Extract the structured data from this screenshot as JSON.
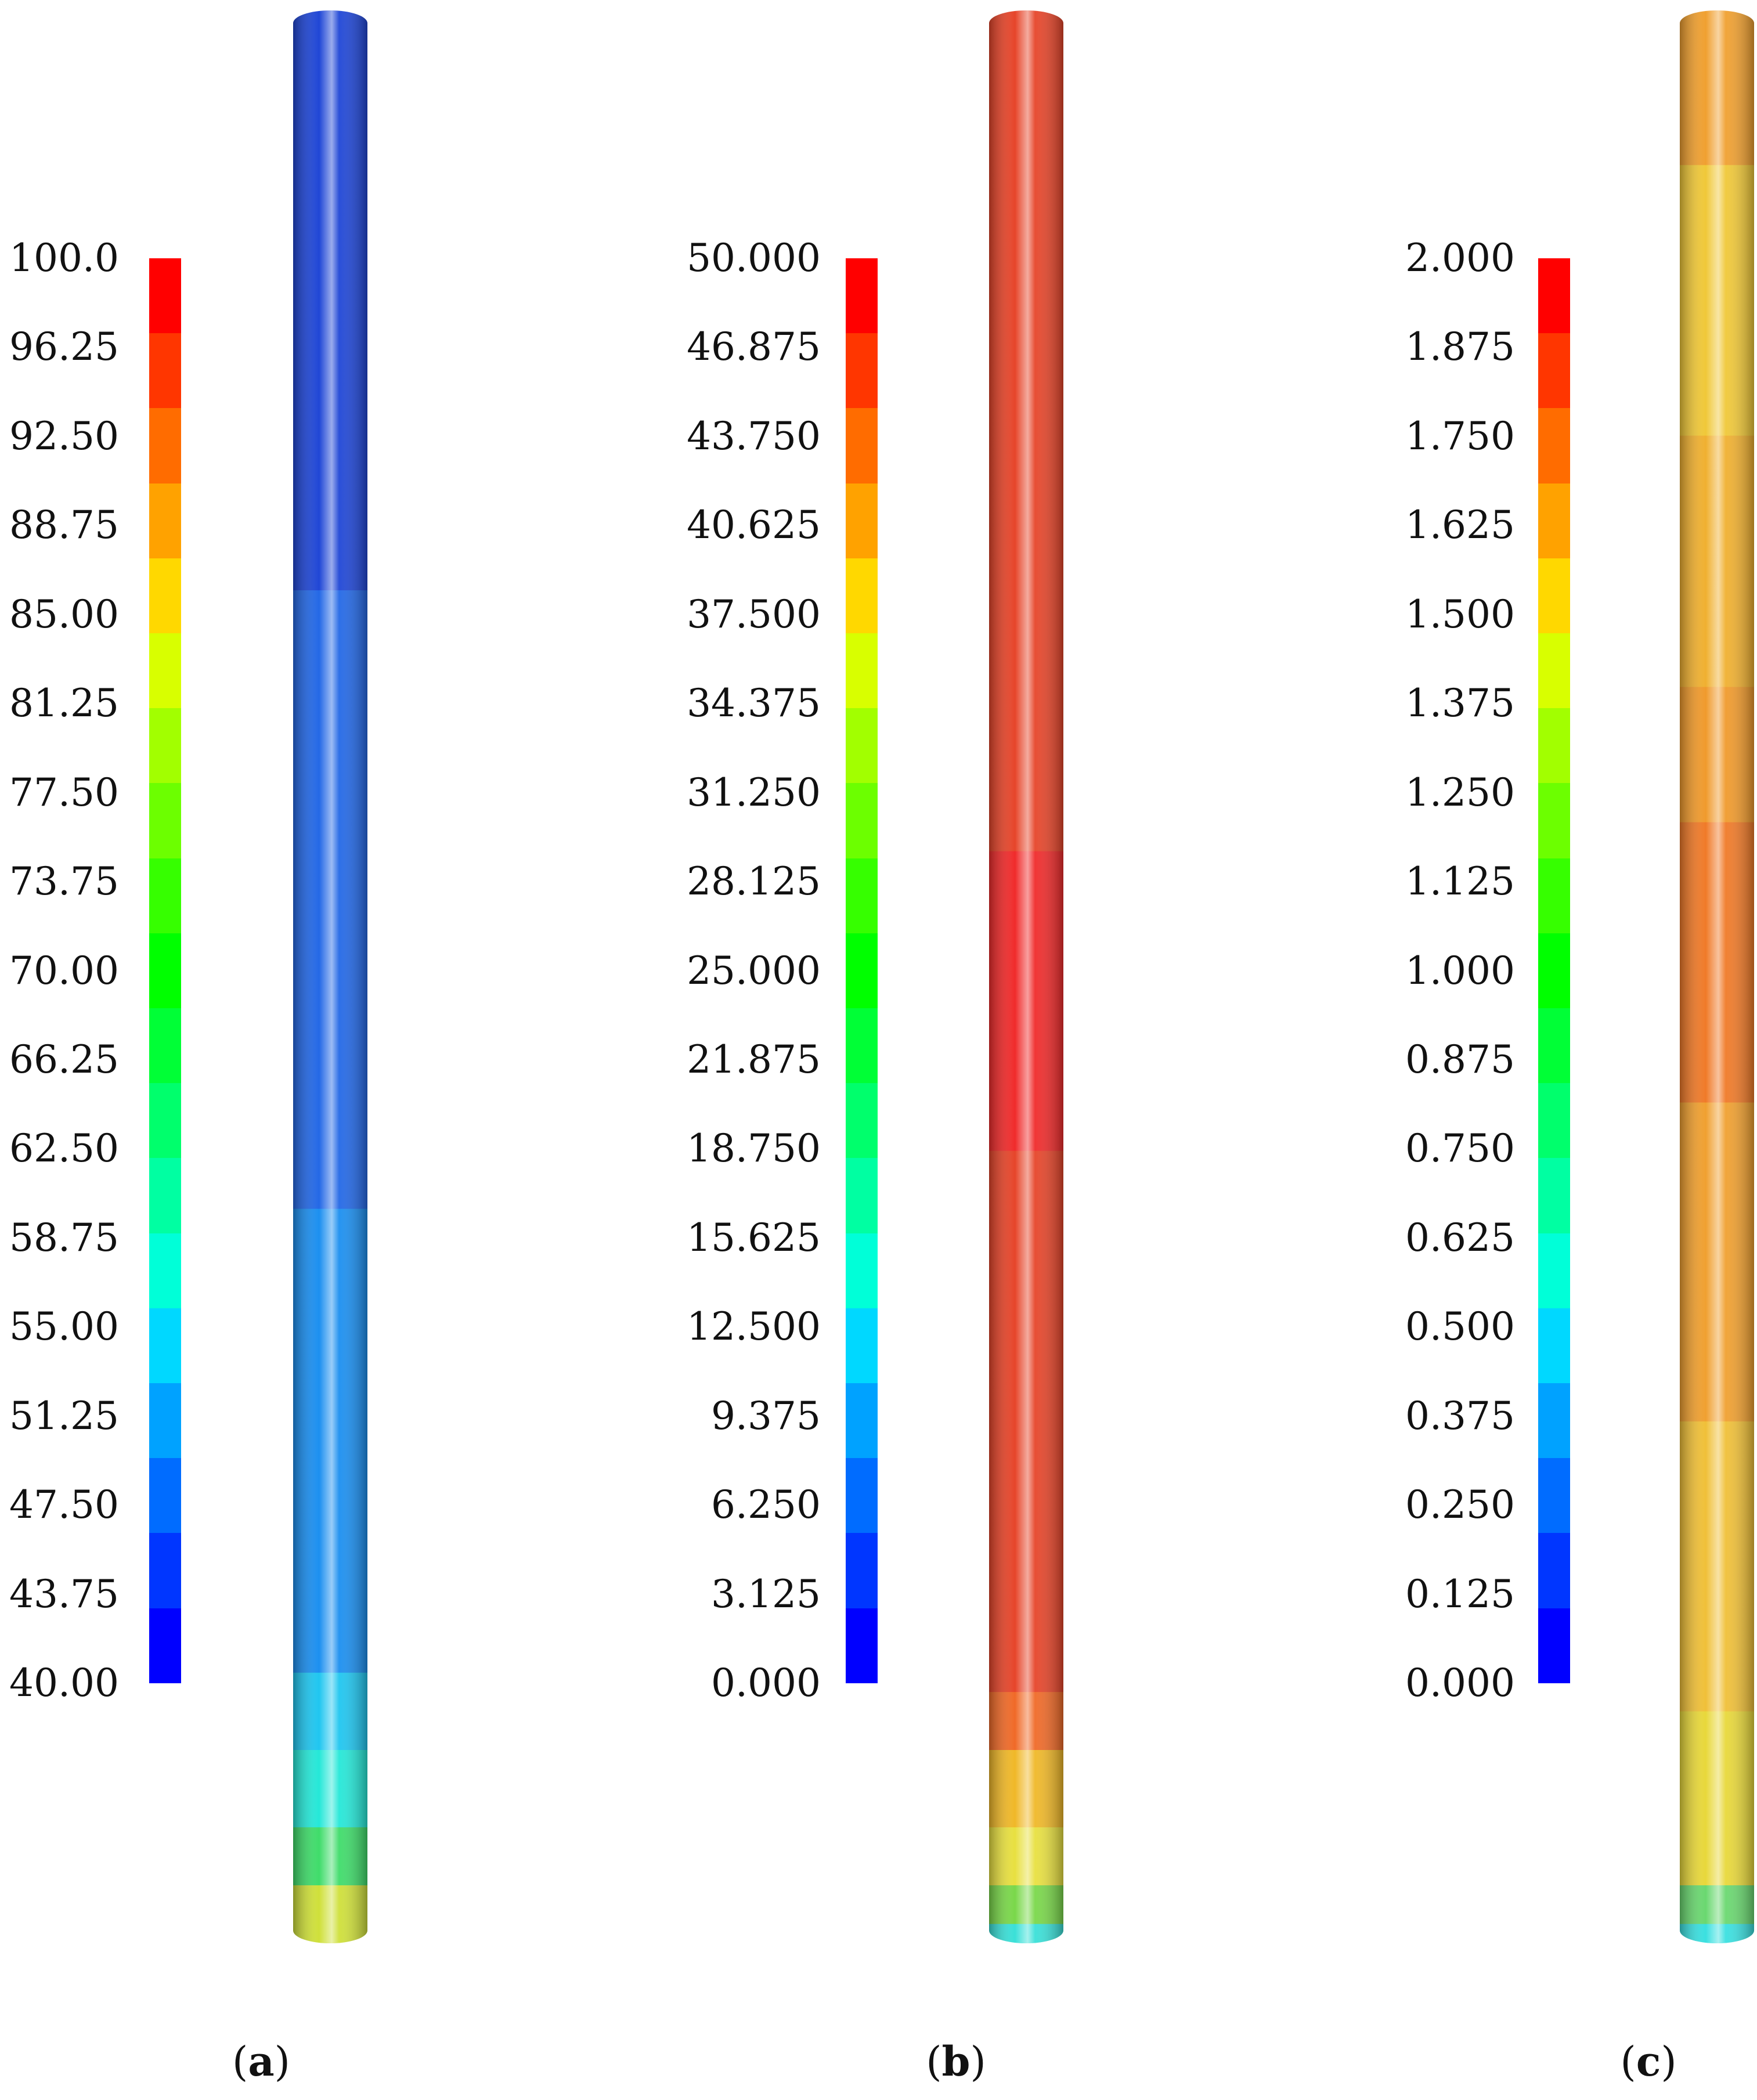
{
  "colormap": [
    "#0000ff",
    "#0036ff",
    "#006cff",
    "#00a2ff",
    "#00d8ff",
    "#00ffd8",
    "#00ffa2",
    "#00ff6c",
    "#00ff36",
    "#00ff00",
    "#36ff00",
    "#6cff00",
    "#a2ff00",
    "#d8ff00",
    "#ffd800",
    "#ffa200",
    "#ff6c00",
    "#ff3600",
    "#ff0000"
  ],
  "panels": [
    {
      "id": "a",
      "caption_open": "(",
      "caption_letter": "a",
      "caption_close": ")",
      "legend_ticks": [
        "100.0",
        "96.25",
        "92.50",
        "88.75",
        "85.00",
        "81.25",
        "77.50",
        "73.75",
        "70.00",
        "66.25",
        "62.50",
        "58.75",
        "55.00",
        "51.25",
        "47.50",
        "43.75",
        "40.00"
      ],
      "rod_bands": [
        {
          "from": 0.0,
          "to": 0.3,
          "color": "#1f46d6"
        },
        {
          "from": 0.3,
          "to": 0.62,
          "color": "#2368e6"
        },
        {
          "from": 0.62,
          "to": 0.86,
          "color": "#1b8ff0"
        },
        {
          "from": 0.86,
          "to": 0.9,
          "color": "#1fc6f0"
        },
        {
          "from": 0.9,
          "to": 0.94,
          "color": "#25e8d8"
        },
        {
          "from": 0.94,
          "to": 0.97,
          "color": "#3fdc6a"
        },
        {
          "from": 0.97,
          "to": 1.0,
          "color": "#cfe03a"
        }
      ]
    },
    {
      "id": "b",
      "caption_open": "(",
      "caption_letter": "b",
      "caption_close": ")",
      "legend_ticks": [
        "50.000",
        "46.875",
        "43.750",
        "40.625",
        "37.500",
        "34.375",
        "31.250",
        "28.125",
        "25.000",
        "21.875",
        "18.750",
        "15.625",
        "12.500",
        "9.375",
        "6.250",
        "3.125",
        "0.000"
      ],
      "rod_bands": [
        {
          "from": 0.0,
          "to": 0.435,
          "color": "#e6452a"
        },
        {
          "from": 0.435,
          "to": 0.59,
          "color": "#f02b2b"
        },
        {
          "from": 0.59,
          "to": 0.87,
          "color": "#e6452a"
        },
        {
          "from": 0.87,
          "to": 0.9,
          "color": "#f06a28"
        },
        {
          "from": 0.9,
          "to": 0.94,
          "color": "#f0b828"
        },
        {
          "from": 0.94,
          "to": 0.97,
          "color": "#e8e040"
        },
        {
          "from": 0.97,
          "to": 0.99,
          "color": "#7ad84a"
        },
        {
          "from": 0.99,
          "to": 1.0,
          "color": "#3ae0d8"
        }
      ]
    },
    {
      "id": "c",
      "caption_open": "(",
      "caption_letter": "c",
      "caption_close": ")",
      "legend_ticks": [
        "2.000",
        "1.875",
        "1.750",
        "1.625",
        "1.500",
        "1.375",
        "1.250",
        "1.125",
        "1.000",
        "0.875",
        "0.750",
        "0.625",
        "0.500",
        "0.375",
        "0.250",
        "0.125",
        "0.000"
      ],
      "rod_bands": [
        {
          "from": 0.0,
          "to": 0.08,
          "color": "#f0a030"
        },
        {
          "from": 0.08,
          "to": 0.22,
          "color": "#f0c838"
        },
        {
          "from": 0.22,
          "to": 0.35,
          "color": "#f0b030"
        },
        {
          "from": 0.35,
          "to": 0.42,
          "color": "#f09a2c"
        },
        {
          "from": 0.42,
          "to": 0.565,
          "color": "#f07a28"
        },
        {
          "from": 0.565,
          "to": 0.73,
          "color": "#f0a030"
        },
        {
          "from": 0.73,
          "to": 0.88,
          "color": "#f0c038"
        },
        {
          "from": 0.88,
          "to": 0.97,
          "color": "#e8d83a"
        },
        {
          "from": 0.97,
          "to": 0.99,
          "color": "#6ad870"
        },
        {
          "from": 0.99,
          "to": 1.0,
          "color": "#3ae0e0"
        }
      ]
    }
  ]
}
